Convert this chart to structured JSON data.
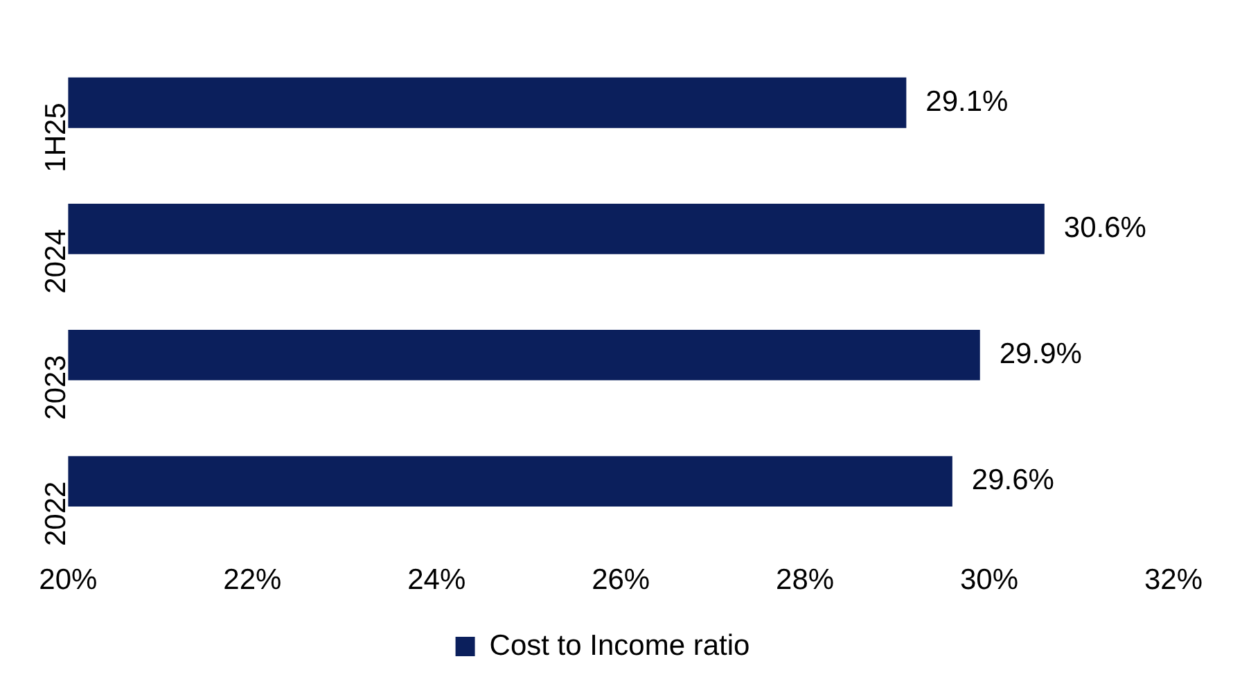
{
  "chart_data": {
    "type": "bar",
    "orientation": "horizontal",
    "categories": [
      "1H25",
      "2024",
      "2023",
      "2022"
    ],
    "series": [
      {
        "name": "Cost to Income ratio",
        "color": "#0b1f5c",
        "values": [
          29.1,
          30.6,
          29.9,
          29.6
        ],
        "value_labels": [
          "29.1%",
          "30.6%",
          "29.9%",
          "29.6%"
        ]
      }
    ],
    "xlim": [
      20,
      32
    ],
    "xticks": [
      {
        "value": 20,
        "label": "20%"
      },
      {
        "value": 22,
        "label": "22%"
      },
      {
        "value": 24,
        "label": "24%"
      },
      {
        "value": 26,
        "label": "26%"
      },
      {
        "value": 28,
        "label": "28%"
      },
      {
        "value": 30,
        "label": "30%"
      },
      {
        "value": 32,
        "label": "32%"
      }
    ],
    "grid": false,
    "legend": "bottom"
  }
}
